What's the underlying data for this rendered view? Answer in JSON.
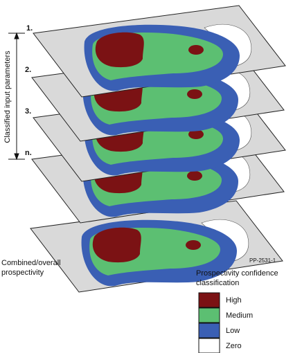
{
  "layer_labels": [
    "1.",
    "2.",
    "3.",
    "n."
  ],
  "axis_label": "Classified input parameters",
  "bottom_label": [
    "Combined/overall",
    "prospectivity"
  ],
  "figure_id": "PP-2531-1",
  "legend": {
    "title": [
      "Prospectivity confidence",
      "classification"
    ],
    "items": [
      {
        "label": "High"
      },
      {
        "label": "Medium"
      },
      {
        "label": "Low"
      },
      {
        "label": "Zero"
      }
    ]
  }
}
